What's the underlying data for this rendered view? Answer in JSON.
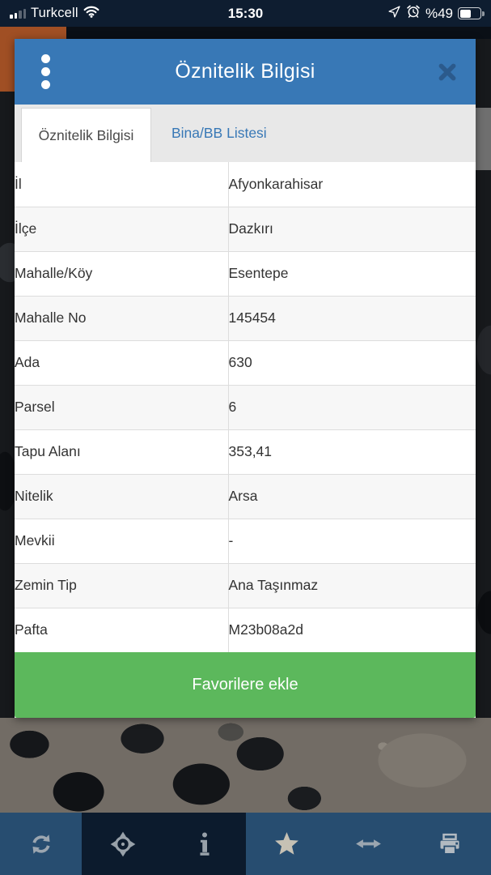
{
  "status_bar": {
    "carrier": "Turkcell",
    "time": "15:30",
    "battery_label": "%49",
    "battery_level": 49
  },
  "modal": {
    "title": "Öznitelik Bilgisi",
    "tabs": [
      {
        "label": "Öznitelik Bilgisi",
        "active": true
      },
      {
        "label": "Bina/BB Listesi",
        "active": false
      }
    ],
    "rows": [
      {
        "label": "İl",
        "value": "Afyonkarahisar"
      },
      {
        "label": "İlçe",
        "value": "Dazkırı"
      },
      {
        "label": "Mahalle/Köy",
        "value": "Esentepe"
      },
      {
        "label": "Mahalle No",
        "value": "145454"
      },
      {
        "label": "Ada",
        "value": "630"
      },
      {
        "label": "Parsel",
        "value": "6"
      },
      {
        "label": "Tapu Alanı",
        "value": "353,41"
      },
      {
        "label": "Nitelik",
        "value": "Arsa"
      },
      {
        "label": "Mevkii",
        "value": "-"
      },
      {
        "label": "Zemin Tip",
        "value": "Ana Taşınmaz"
      },
      {
        "label": "Pafta",
        "value": "M23b08a2d"
      }
    ],
    "favorite_button_label": "Favorilere ekle"
  },
  "toolbar": {
    "buttons": [
      {
        "icon": "refresh-icon",
        "active": false
      },
      {
        "icon": "crosshair-icon",
        "active": true
      },
      {
        "icon": "info-icon",
        "active": true
      },
      {
        "icon": "star-icon",
        "active": false
      },
      {
        "icon": "resize-horizontal-icon",
        "active": false
      },
      {
        "icon": "print-icon",
        "active": false
      }
    ]
  },
  "colors": {
    "header_blue": "#3878b6",
    "link_blue": "#3878b6",
    "button_green": "#5cb85c",
    "toolbar_blue": "#274d70",
    "toolbar_dark": "#0c1b2d",
    "status_bar_bg": "#0e1d30",
    "background_orange": "#a04f24"
  }
}
